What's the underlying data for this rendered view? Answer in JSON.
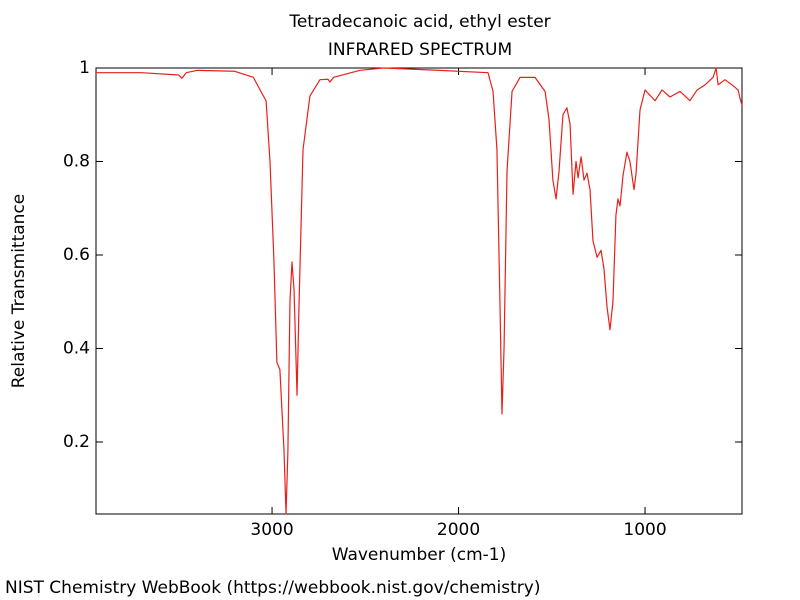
{
  "chart_data": {
    "type": "line",
    "title": "Tetradecanoic acid, ethyl ester",
    "subtitle": "INFRARED SPECTRUM",
    "x_label": "Wavenumber (cm-1)",
    "y_label": "Relative Transmittance",
    "xlim": [
      3944,
      480
    ],
    "xticks": [
      3000,
      2000,
      1000
    ],
    "ylim": [
      0.046,
      1
    ],
    "yticks": [
      0.2,
      0.4,
      0.6,
      0.8,
      1
    ],
    "grid": false,
    "series": [
      {
        "color": "#e8201a",
        "x": [
          3944,
          3700,
          3500,
          3483,
          3460,
          3400,
          3200,
          3100,
          3060,
          3032,
          3011,
          2990,
          2974,
          2958,
          2936,
          2925,
          2915,
          2904,
          2893,
          2882,
          2866,
          2855,
          2834,
          2797,
          2743,
          2700,
          2690,
          2670,
          2528,
          2400,
          2100,
          1842,
          1815,
          1794,
          1778,
          1767,
          1756,
          1740,
          1713,
          1670,
          1590,
          1536,
          1515,
          1494,
          1477,
          1461,
          1440,
          1419,
          1402,
          1386,
          1370,
          1359,
          1343,
          1327,
          1311,
          1295,
          1279,
          1257,
          1236,
          1220,
          1204,
          1188,
          1172,
          1156,
          1145,
          1134,
          1118,
          1097,
          1081,
          1059,
          1048,
          1027,
          1000,
          946,
          909,
          866,
          812,
          759,
          721,
          678,
          635,
          619,
          608,
          571,
          534,
          501,
          491,
          480
        ],
        "values": [
          0.99,
          0.99,
          0.985,
          0.978,
          0.99,
          0.995,
          0.993,
          0.98,
          0.95,
          0.93,
          0.8,
          0.59,
          0.37,
          0.355,
          0.183,
          0.046,
          0.18,
          0.5,
          0.585,
          0.525,
          0.3,
          0.5,
          0.825,
          0.94,
          0.975,
          0.976,
          0.97,
          0.98,
          0.995,
          1.0,
          0.995,
          0.99,
          0.95,
          0.825,
          0.5,
          0.26,
          0.4,
          0.78,
          0.95,
          0.98,
          0.98,
          0.95,
          0.89,
          0.76,
          0.72,
          0.78,
          0.9,
          0.915,
          0.88,
          0.73,
          0.8,
          0.765,
          0.81,
          0.76,
          0.775,
          0.74,
          0.63,
          0.595,
          0.61,
          0.57,
          0.49,
          0.44,
          0.5,
          0.685,
          0.72,
          0.705,
          0.77,
          0.82,
          0.8,
          0.74,
          0.775,
          0.91,
          0.953,
          0.93,
          0.953,
          0.938,
          0.95,
          0.93,
          0.953,
          0.964,
          0.98,
          1.0,
          0.964,
          0.975,
          0.964,
          0.953,
          0.936,
          0.92
        ]
      }
    ]
  },
  "source": "NIST Chemistry WebBook (https://webbook.nist.gov/chemistry)"
}
